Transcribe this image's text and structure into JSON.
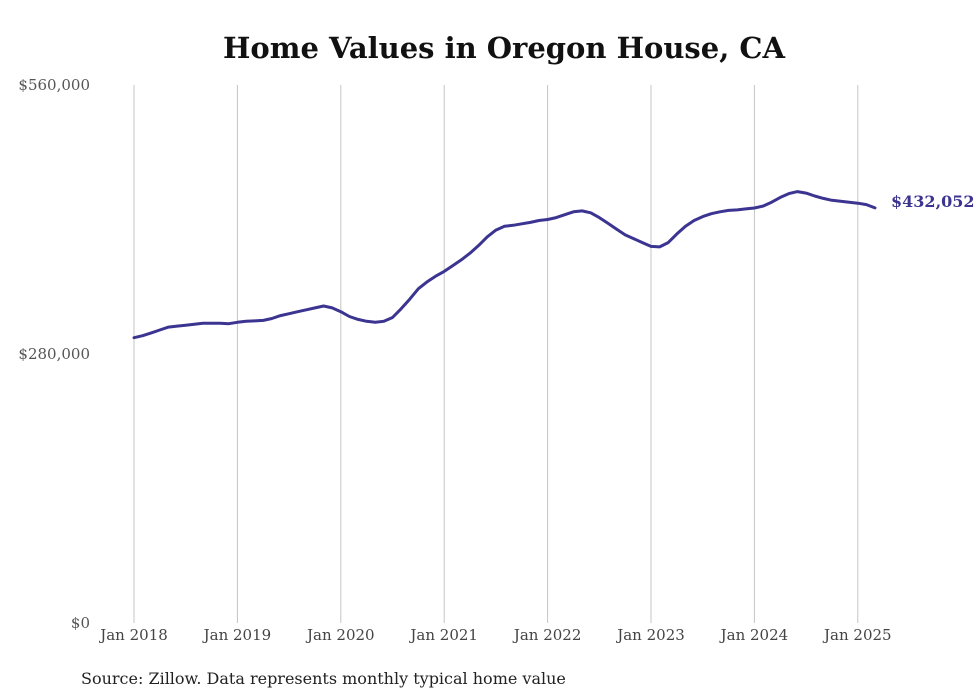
{
  "chart_data": {
    "type": "line",
    "title": "Home Values in Oregon House, CA",
    "xlabel": "",
    "ylabel": "",
    "ylim": [
      0,
      560000
    ],
    "y_ticks": [
      {
        "value": 0,
        "label": "$0"
      },
      {
        "value": 280000,
        "label": "$280,000"
      },
      {
        "value": 560000,
        "label": "$560,000"
      }
    ],
    "x_ticks": [
      {
        "value": "2018-01",
        "label": "Jan 2018"
      },
      {
        "value": "2019-01",
        "label": "Jan 2019"
      },
      {
        "value": "2020-01",
        "label": "Jan 2020"
      },
      {
        "value": "2021-01",
        "label": "Jan 2021"
      },
      {
        "value": "2022-01",
        "label": "Jan 2022"
      },
      {
        "value": "2023-01",
        "label": "Jan 2023"
      },
      {
        "value": "2024-01",
        "label": "Jan 2024"
      },
      {
        "value": "2025-01",
        "label": "Jan 2025"
      }
    ],
    "grid": "vertical",
    "legend": "none",
    "series": [
      {
        "color": "#3b3491",
        "end_label": "$432,052",
        "points": [
          [
            "2018-01",
            297000
          ],
          [
            "2018-02",
            299000
          ],
          [
            "2018-03",
            302000
          ],
          [
            "2018-04",
            305000
          ],
          [
            "2018-05",
            308000
          ],
          [
            "2018-06",
            309000
          ],
          [
            "2018-07",
            310000
          ],
          [
            "2018-08",
            311000
          ],
          [
            "2018-09",
            312000
          ],
          [
            "2018-10",
            312000
          ],
          [
            "2018-11",
            312000
          ],
          [
            "2018-12",
            311500
          ],
          [
            "2019-01",
            313000
          ],
          [
            "2019-02",
            314000
          ],
          [
            "2019-03",
            314500
          ],
          [
            "2019-04",
            315000
          ],
          [
            "2019-05",
            317000
          ],
          [
            "2019-06",
            320000
          ],
          [
            "2019-07",
            322000
          ],
          [
            "2019-08",
            324000
          ],
          [
            "2019-09",
            326000
          ],
          [
            "2019-10",
            328000
          ],
          [
            "2019-11",
            330000
          ],
          [
            "2019-12",
            328000
          ],
          [
            "2020-01",
            324000
          ],
          [
            "2020-02",
            319000
          ],
          [
            "2020-03",
            316000
          ],
          [
            "2020-04",
            314000
          ],
          [
            "2020-05",
            313000
          ],
          [
            "2020-06",
            314000
          ],
          [
            "2020-07",
            318000
          ],
          [
            "2020-08",
            327000
          ],
          [
            "2020-09",
            337000
          ],
          [
            "2020-10",
            348000
          ],
          [
            "2020-11",
            355000
          ],
          [
            "2020-12",
            361000
          ],
          [
            "2021-01",
            366000
          ],
          [
            "2021-02",
            372000
          ],
          [
            "2021-03",
            378000
          ],
          [
            "2021-04",
            385000
          ],
          [
            "2021-05",
            393000
          ],
          [
            "2021-06",
            402000
          ],
          [
            "2021-07",
            409000
          ],
          [
            "2021-08",
            413000
          ],
          [
            "2021-09",
            414000
          ],
          [
            "2021-10",
            415500
          ],
          [
            "2021-11",
            417000
          ],
          [
            "2021-12",
            419000
          ],
          [
            "2022-01",
            420000
          ],
          [
            "2022-02",
            422000
          ],
          [
            "2022-03",
            425000
          ],
          [
            "2022-04",
            428000
          ],
          [
            "2022-05",
            429000
          ],
          [
            "2022-06",
            427000
          ],
          [
            "2022-07",
            422000
          ],
          [
            "2022-08",
            416000
          ],
          [
            "2022-09",
            410000
          ],
          [
            "2022-10",
            404000
          ],
          [
            "2022-11",
            400000
          ],
          [
            "2022-12",
            396000
          ],
          [
            "2023-01",
            392000
          ],
          [
            "2023-02",
            391500
          ],
          [
            "2023-03",
            396000
          ],
          [
            "2023-04",
            405000
          ],
          [
            "2023-05",
            413000
          ],
          [
            "2023-06",
            419000
          ],
          [
            "2023-07",
            423000
          ],
          [
            "2023-08",
            426000
          ],
          [
            "2023-09",
            428000
          ],
          [
            "2023-10",
            429500
          ],
          [
            "2023-11",
            430000
          ],
          [
            "2023-12",
            431000
          ],
          [
            "2024-01",
            432000
          ],
          [
            "2024-02",
            434000
          ],
          [
            "2024-03",
            438000
          ],
          [
            "2024-04",
            443000
          ],
          [
            "2024-05",
            447000
          ],
          [
            "2024-06",
            449000
          ],
          [
            "2024-07",
            447500
          ],
          [
            "2024-08",
            444500
          ],
          [
            "2024-09",
            442000
          ],
          [
            "2024-10",
            440000
          ],
          [
            "2024-11",
            439000
          ],
          [
            "2024-12",
            438000
          ],
          [
            "2025-01",
            437000
          ],
          [
            "2025-02",
            435500
          ],
          [
            "2025-03",
            432052
          ]
        ]
      }
    ]
  },
  "source_note": "Source: Zillow. Data represents monthly typical home value"
}
